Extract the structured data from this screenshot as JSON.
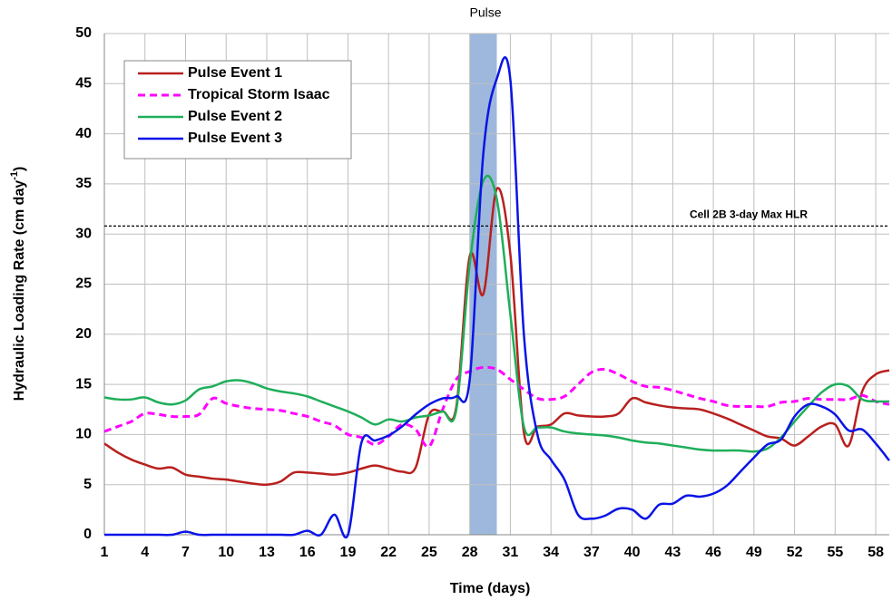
{
  "chart_data": {
    "type": "line",
    "xlabel": "Time (days)",
    "ylabel": {
      "text": "Hydraulic  Loading Rate (cm day",
      "sup": "-1",
      "end": ")"
    },
    "x": [
      1,
      2,
      3,
      4,
      5,
      6,
      7,
      8,
      9,
      10,
      11,
      12,
      13,
      14,
      15,
      16,
      17,
      18,
      19,
      20,
      21,
      22,
      23,
      24,
      25,
      26,
      27,
      28,
      29,
      30,
      31,
      32,
      33,
      34,
      35,
      36,
      37,
      38,
      39,
      40,
      41,
      42,
      43,
      44,
      45,
      46,
      47,
      48,
      49,
      50,
      51,
      52,
      53,
      54,
      55,
      56,
      57,
      58,
      59
    ],
    "xlim": [
      1,
      59
    ],
    "xticks": [
      1,
      4,
      7,
      10,
      13,
      16,
      19,
      22,
      25,
      28,
      31,
      34,
      37,
      40,
      43,
      46,
      49,
      52,
      55,
      58
    ],
    "ylim": [
      0,
      50
    ],
    "yticks": [
      0,
      5,
      10,
      15,
      20,
      25,
      30,
      35,
      40,
      45,
      50
    ],
    "grid": true,
    "pulse_band": {
      "label": "Pulse",
      "x": [
        28,
        30
      ],
      "color": "#9db8dc"
    },
    "threshold": {
      "label": "Cell 2B 3-day Max HLR",
      "value": 30.8
    },
    "series": [
      {
        "name": "Pulse Event 1",
        "color": "#b8201e",
        "dashed": false,
        "values": [
          9.1,
          8.2,
          7.5,
          7.0,
          6.6,
          6.7,
          6.0,
          5.8,
          5.6,
          5.5,
          5.3,
          5.1,
          5.0,
          5.3,
          6.2,
          6.2,
          6.1,
          6.0,
          6.2,
          6.6,
          6.9,
          6.6,
          6.3,
          6.7,
          12.0,
          12.3,
          12.7,
          27.8,
          24.0,
          34.5,
          28,
          10.2,
          10.8,
          11.0,
          12.1,
          11.9,
          11.8,
          11.8,
          12.1,
          13.6,
          13.2,
          12.9,
          12.7,
          12.6,
          12.5,
          12.1,
          11.6,
          11.0,
          10.4,
          9.8,
          9.6,
          8.9,
          9.8,
          10.8,
          11.0,
          8.9,
          14.3,
          16.0,
          16.4
        ]
      },
      {
        "name": "Tropical Storm Isaac",
        "color": "#ff00ff",
        "dashed": true,
        "values": [
          10.3,
          10.8,
          11.3,
          12.1,
          12.0,
          11.8,
          11.8,
          12.0,
          13.6,
          13.1,
          12.8,
          12.6,
          12.5,
          12.4,
          12.1,
          11.8,
          11.3,
          10.9,
          10.0,
          9.7,
          9.0,
          9.8,
          11.0,
          10.5,
          8.8,
          12.5,
          15.5,
          16.3,
          16.7,
          16.5,
          15.5,
          14.5,
          13.6,
          13.5,
          13.8,
          15.0,
          16.2,
          16.5,
          16.0,
          15.3,
          14.8,
          14.7,
          14.4,
          14.0,
          13.6,
          13.3,
          12.9,
          12.8,
          12.8,
          12.8,
          13.2,
          13.3,
          13.6,
          13.5,
          13.5,
          13.5,
          13.9,
          13.3,
          13.0
        ]
      },
      {
        "name": "Pulse Event 2",
        "color": "#1fae5a",
        "dashed": false,
        "values": [
          13.7,
          13.5,
          13.5,
          13.7,
          13.2,
          13.0,
          13.4,
          14.5,
          14.8,
          15.3,
          15.4,
          15.1,
          14.6,
          14.3,
          14.1,
          13.8,
          13.3,
          12.8,
          12.3,
          11.7,
          11.0,
          11.5,
          11.3,
          11.7,
          11.9,
          12.3,
          12.4,
          27,
          35.3,
          33.5,
          22,
          10.8,
          10.7,
          10.7,
          10.3,
          10.1,
          10.0,
          9.9,
          9.7,
          9.4,
          9.2,
          9.1,
          8.9,
          8.7,
          8.5,
          8.4,
          8.4,
          8.4,
          8.3,
          8.6,
          9.7,
          11.3,
          12.8,
          14.2,
          15.0,
          14.8,
          13.5,
          13.3,
          13.3
        ]
      },
      {
        "name": "Pulse Event 3",
        "color": "#0a14e6",
        "dashed": false,
        "values": [
          0,
          0,
          0,
          0,
          0,
          0,
          0.3,
          0,
          0,
          0,
          0,
          0,
          0,
          0,
          0,
          0.4,
          0,
          2.0,
          0,
          9.2,
          9.4,
          9.9,
          10.8,
          12.0,
          13.0,
          13.6,
          13.8,
          15.5,
          38,
          45.5,
          45.4,
          20,
          10.0,
          7.5,
          5.5,
          2.0,
          1.6,
          1.9,
          2.6,
          2.5,
          1.6,
          3.0,
          3.1,
          3.9,
          3.8,
          4.1,
          4.9,
          6.3,
          7.7,
          9.0,
          9.5,
          11.8,
          13.0,
          12.8,
          12.0,
          10.4,
          10.5,
          9.1,
          7.4
        ]
      }
    ]
  }
}
